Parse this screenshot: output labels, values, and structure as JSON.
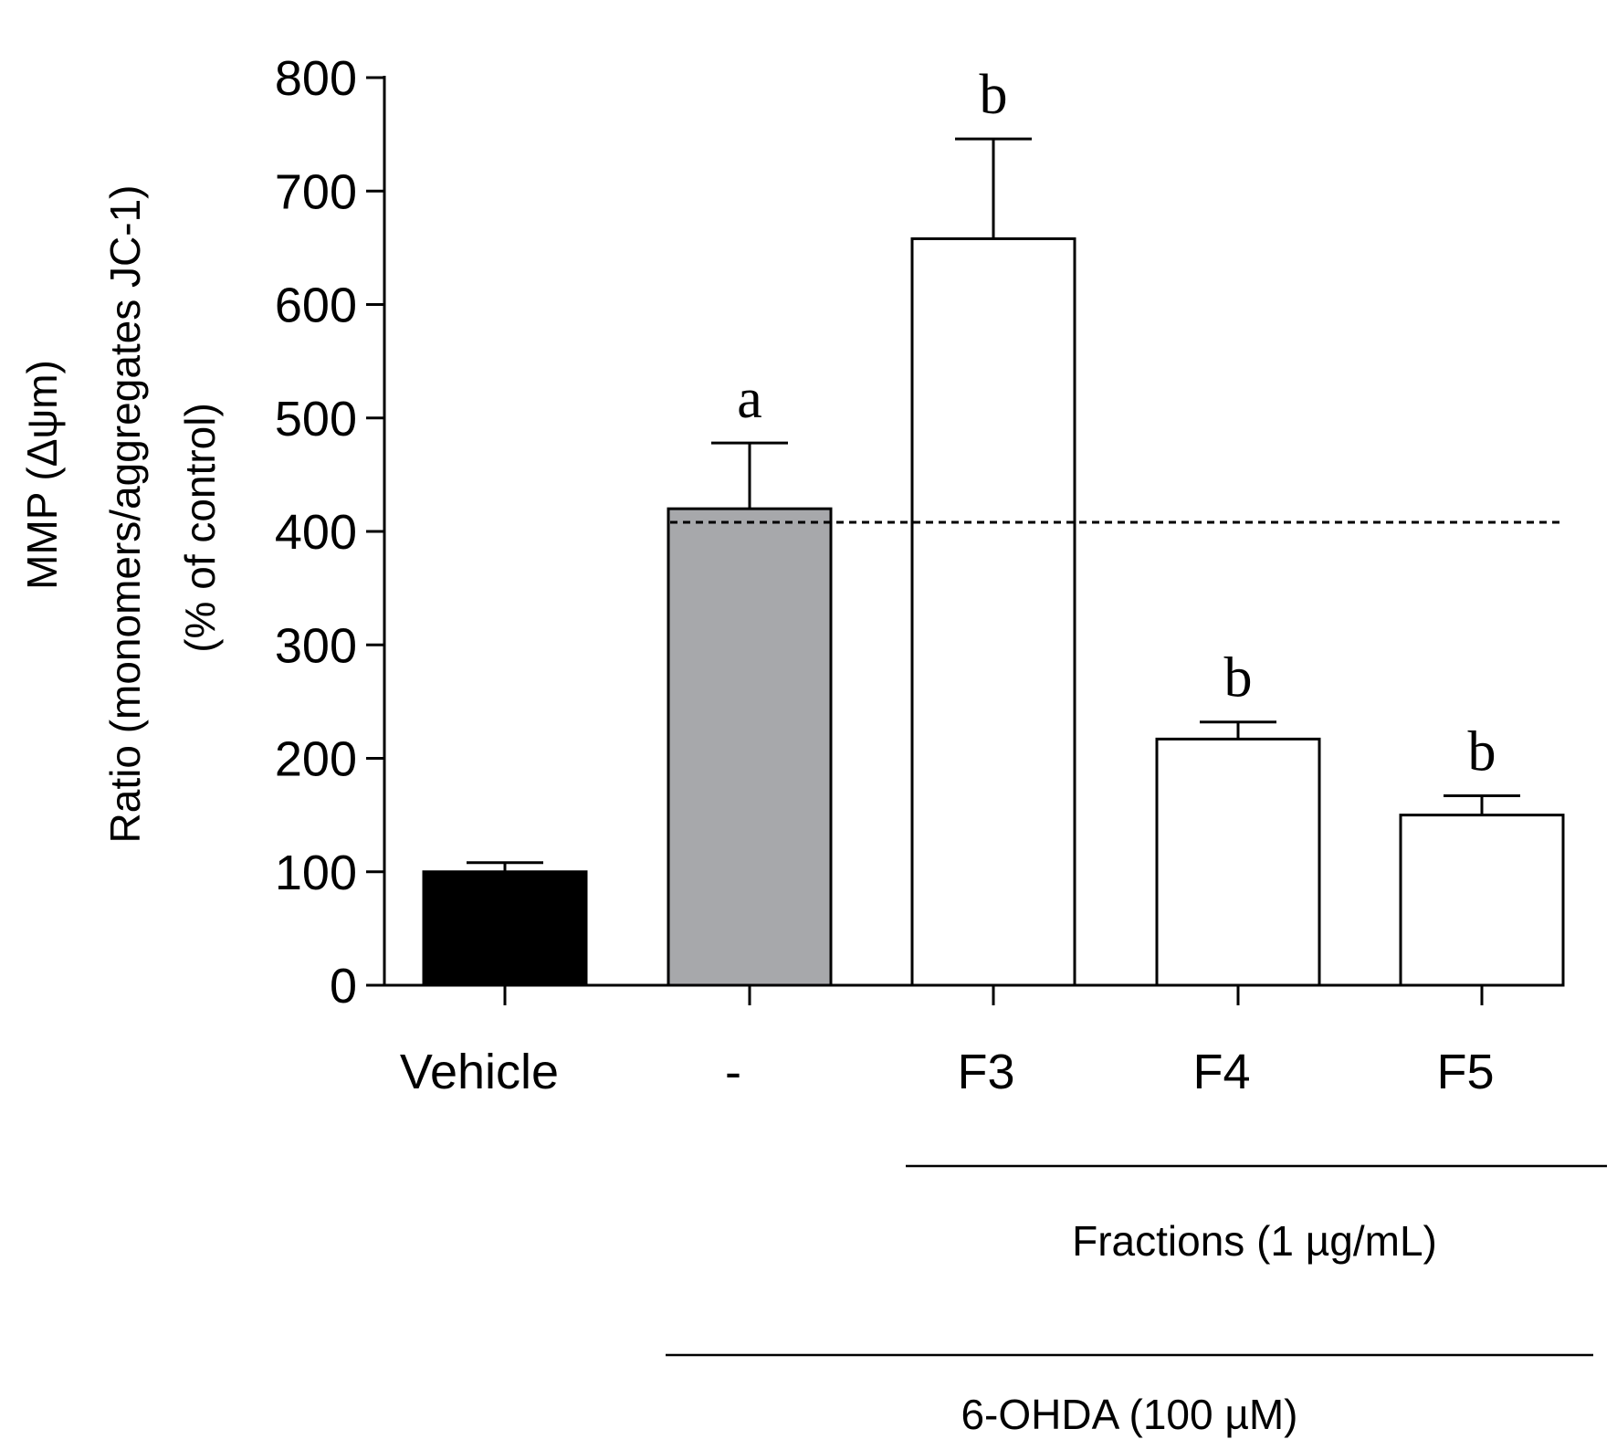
{
  "chart_data": {
    "type": "bar",
    "categories": [
      "Vehicle",
      "-",
      "F3",
      "F4",
      "F5"
    ],
    "values": [
      100,
      420,
      658,
      217,
      150
    ],
    "errors": [
      8,
      58,
      88,
      15,
      17
    ],
    "significance": [
      "",
      "a",
      "b",
      "b",
      "b"
    ],
    "bar_fills": [
      "#000000",
      "#a7a8ab",
      "#ffffff",
      "#ffffff",
      "#ffffff"
    ],
    "ylim": [
      0,
      800
    ],
    "yticks": [
      "0",
      "100",
      "200",
      "300",
      "400",
      "500",
      "600",
      "700",
      "800"
    ],
    "ylabel_line1": "MMP (Δψm)",
    "ylabel_line2": "Ratio (monomers/aggregates  JC-1)",
    "ylabel_line3": "(% of control)",
    "reference_line": 408,
    "group_labels": {
      "fractions": "Fractions (1 µg/mL)",
      "treatment": "6-OHDA (100 µM)"
    }
  }
}
